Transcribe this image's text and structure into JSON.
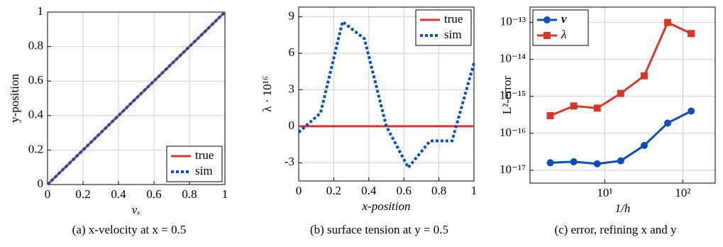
{
  "chart_data": [
    {
      "type": "line",
      "caption": "(a) x-velocity at x = 0.5",
      "xlabel": "vₓ",
      "ylabel": "y-position",
      "x": [
        0,
        1
      ],
      "series": [
        {
          "name": "true",
          "color": "#d7372b",
          "style": "solid",
          "values": [
            0,
            1
          ]
        },
        {
          "name": "sim",
          "color": "#0a4fb8",
          "style": "dotted",
          "values": [
            0,
            1
          ]
        }
      ],
      "xlim": [
        0,
        1
      ],
      "ylim": [
        0,
        1
      ],
      "xticks": [
        0,
        0.2,
        0.4,
        0.6,
        0.8,
        1
      ],
      "yticks": [
        0,
        0.2,
        0.4,
        0.6,
        0.8,
        1
      ],
      "grid": true,
      "legend": "lower right"
    },
    {
      "type": "line",
      "caption": "(b) surface tension at y = 0.5",
      "xlabel": "x-position",
      "ylabel": "λ · 10¹⁶",
      "x": [
        0,
        0.125,
        0.25,
        0.375,
        0.5,
        0.625,
        0.75,
        0.875,
        1
      ],
      "series": [
        {
          "name": "true",
          "color": "#d7372b",
          "style": "solid",
          "values": [
            0,
            0,
            0,
            0,
            0,
            0,
            0,
            0,
            0
          ]
        },
        {
          "name": "sim",
          "color": "#0a4fb8",
          "style": "dotted",
          "values": [
            -0.5,
            1.1,
            8.6,
            7.2,
            0,
            -3.4,
            -1.2,
            -1.2,
            5.2
          ]
        }
      ],
      "xlim": [
        0,
        1
      ],
      "ylim": [
        -4.5,
        9.8
      ],
      "xticks": [
        0,
        0.2,
        0.4,
        0.6,
        0.8,
        1
      ],
      "yticks": [
        -3,
        0,
        3,
        6,
        9
      ],
      "grid": true,
      "legend": "upper right"
    },
    {
      "type": "line",
      "caption": "(c) error, refining x and y",
      "xlabel": "1/h",
      "ylabel": "L²-error",
      "x": [
        2,
        4,
        8,
        16,
        32,
        64,
        128
      ],
      "series": [
        {
          "name": "v",
          "color": "#0a4fb8",
          "style": "solid",
          "marker": "circle",
          "values": [
            1.6e-17,
            1.7e-17,
            1.5e-17,
            1.8e-17,
            4.7e-17,
            1.9e-16,
            4e-16
          ]
        },
        {
          "name": "λ",
          "color": "#d7372b",
          "style": "solid",
          "marker": "square",
          "values": [
            3e-16,
            5.5e-16,
            4.8e-16,
            1.2e-15,
            3.6e-15,
            1e-13,
            5e-14
          ]
        }
      ],
      "xlim": [
        1.1,
        260
      ],
      "ylim": [
        4.5e-18,
        2.6e-13
      ],
      "xlog": true,
      "ylog": true,
      "xticks": [
        {
          "value": 10,
          "label": "10¹"
        },
        {
          "value": 100,
          "label": "10²"
        }
      ],
      "yticks": [
        {
          "value": 1e-17,
          "label": "10⁻¹⁷"
        },
        {
          "value": 1e-16,
          "label": "10⁻¹⁶"
        },
        {
          "value": 1e-15,
          "label": "10⁻¹⁵"
        },
        {
          "value": 1e-14,
          "label": "10⁻¹⁴"
        },
        {
          "value": 1e-13,
          "label": "10⁻¹³"
        }
      ],
      "grid": true,
      "legend": "upper left"
    }
  ]
}
